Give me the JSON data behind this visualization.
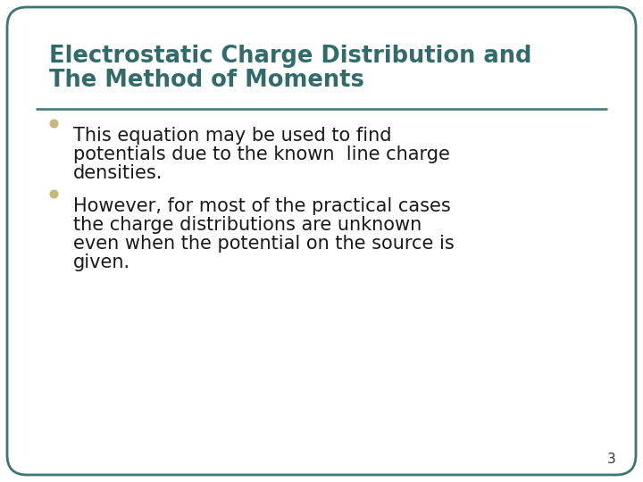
{
  "title_line1": "Electrostatic Charge Distribution and",
  "title_line2": "The Method of Moments",
  "title_color": "#336B6B",
  "title_fontsize": 18.5,
  "bullet_color": "#C8B87A",
  "bullet_text_color": "#1A1A1A",
  "bullet_fontsize": 15,
  "bullets": [
    [
      "This equation may be used to find",
      "potentials due to the known  line charge",
      "densities."
    ],
    [
      "However, for most of the practical cases",
      "the charge distributions are unknown",
      "even when the potential on the source is",
      "given."
    ]
  ],
  "background_color": "#FFFFFF",
  "border_color": "#3D7575",
  "divider_color": "#3D7575",
  "slide_number": "3",
  "slide_number_color": "#333333",
  "slide_number_fontsize": 11,
  "outer_bg": "#FFFFFF"
}
